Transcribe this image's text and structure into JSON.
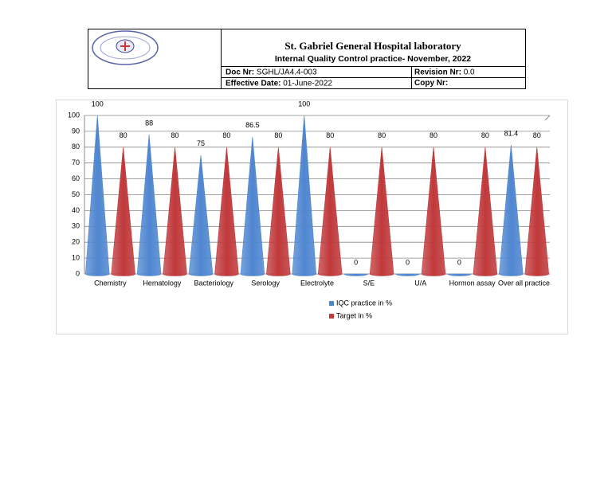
{
  "header": {
    "title": "St. Gabriel General Hospital laboratory",
    "subtitle": "Internal Quality Control practice- November, 2022",
    "doc_nr": {
      "label": "Doc Nr:",
      "value": "SGHL/JA4.4-003"
    },
    "revision_nr": {
      "label": "Revision Nr:",
      "value": "0.0"
    },
    "effective_date": {
      "label": "Effective Date:",
      "value": "01-June-2022"
    },
    "copy_nr": {
      "label": "Copy Nr:"
    }
  },
  "chart_data": {
    "type": "bar",
    "categories": [
      "Chemistry",
      "Hematology",
      "Bacteriology",
      "Serology",
      "Electrolyte",
      "S/E",
      "U/A",
      "Hormon assay",
      "Over all practice"
    ],
    "series": [
      {
        "name": "IQC practice in %",
        "color": "#4f86d0",
        "values": [
          100,
          88,
          75,
          86.5,
          100,
          0,
          0,
          0,
          81.4
        ]
      },
      {
        "name": "Target in %",
        "color": "#c0393b",
        "values": [
          80,
          80,
          80,
          80,
          80,
          80,
          80,
          80,
          80
        ]
      }
    ],
    "ylim": [
      0,
      100
    ],
    "yticks": [
      0,
      10,
      20,
      30,
      40,
      50,
      60,
      70,
      80,
      90,
      100
    ],
    "grid": true
  }
}
